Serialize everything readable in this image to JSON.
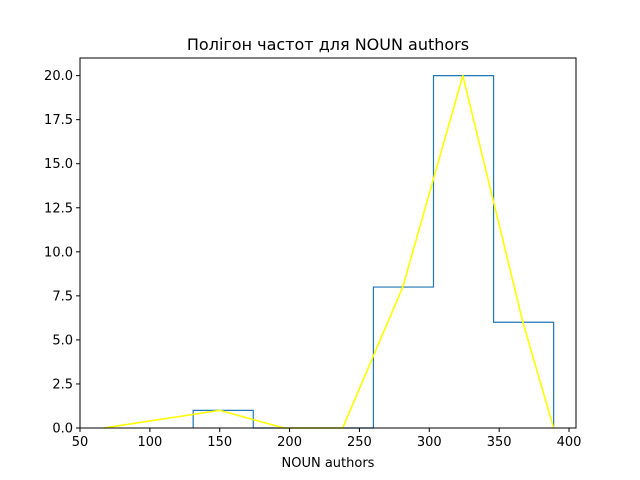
{
  "chart_data": {
    "type": "line",
    "title": "Полігон частот для NOUN authors",
    "xlabel": "NOUN authors",
    "ylabel": "",
    "xlim": [
      50,
      405
    ],
    "ylim": [
      0,
      21
    ],
    "xticks": [
      50,
      100,
      150,
      200,
      250,
      300,
      350,
      400
    ],
    "yticks": [
      0.0,
      2.5,
      5.0,
      7.5,
      10.0,
      12.5,
      15.0,
      17.5,
      20.0
    ],
    "grid": false,
    "series": [
      {
        "kind": "histogram-step",
        "color": "#1f77b4",
        "bin_edges": [
          131,
          174,
          217,
          260,
          303,
          346,
          389
        ],
        "counts": [
          1,
          0,
          0,
          8,
          20,
          6
        ]
      },
      {
        "kind": "frequency-polygon",
        "color": "#ffff00",
        "x": [
          67,
          150,
          196,
          238,
          281,
          324,
          367,
          389
        ],
        "y": [
          0,
          1,
          0,
          0,
          8,
          20,
          6,
          0
        ]
      }
    ]
  }
}
